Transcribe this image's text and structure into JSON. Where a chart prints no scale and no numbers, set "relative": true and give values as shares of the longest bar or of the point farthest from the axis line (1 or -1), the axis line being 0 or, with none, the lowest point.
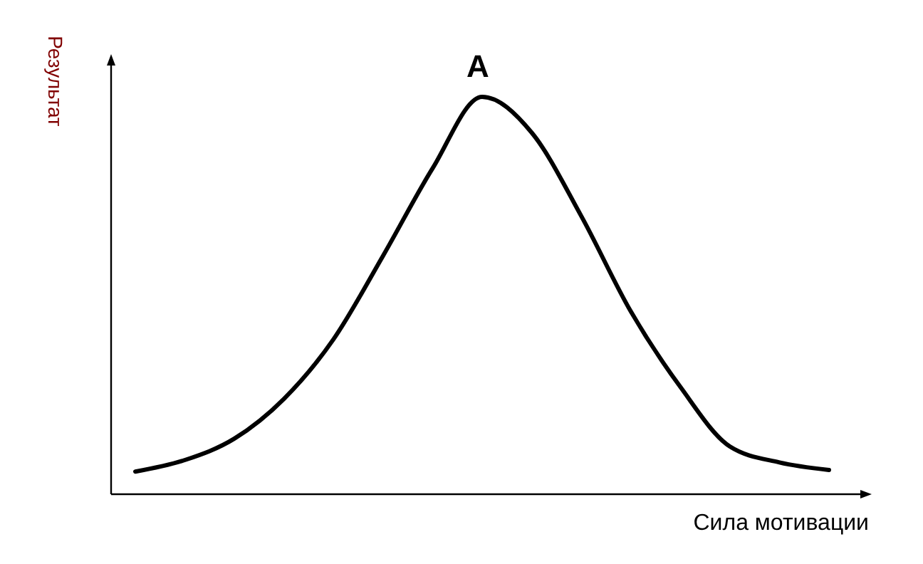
{
  "chart_data": {
    "type": "line",
    "relative": true,
    "xlabel": "Сила мотивации",
    "ylabel": "Результат",
    "categories": [
      null,
      null,
      null,
      null,
      null,
      null,
      null,
      null,
      null,
      null,
      null,
      null,
      null,
      null,
      null
    ],
    "series": [
      {
        "color": "#000000",
        "values": [
          0.057,
          0.086,
          0.14,
          0.24,
          0.39,
          0.6,
          0.82,
          1,
          0.91,
          0.7,
          0.46,
          0.27,
          0.12,
          0.08,
          0.061
        ]
      }
    ],
    "annotations": [
      {
        "text": "A",
        "y": 1
      }
    ],
    "tick_labels": false,
    "grid": false,
    "legend": false,
    "marker": "none",
    "line_style": "solid"
  }
}
